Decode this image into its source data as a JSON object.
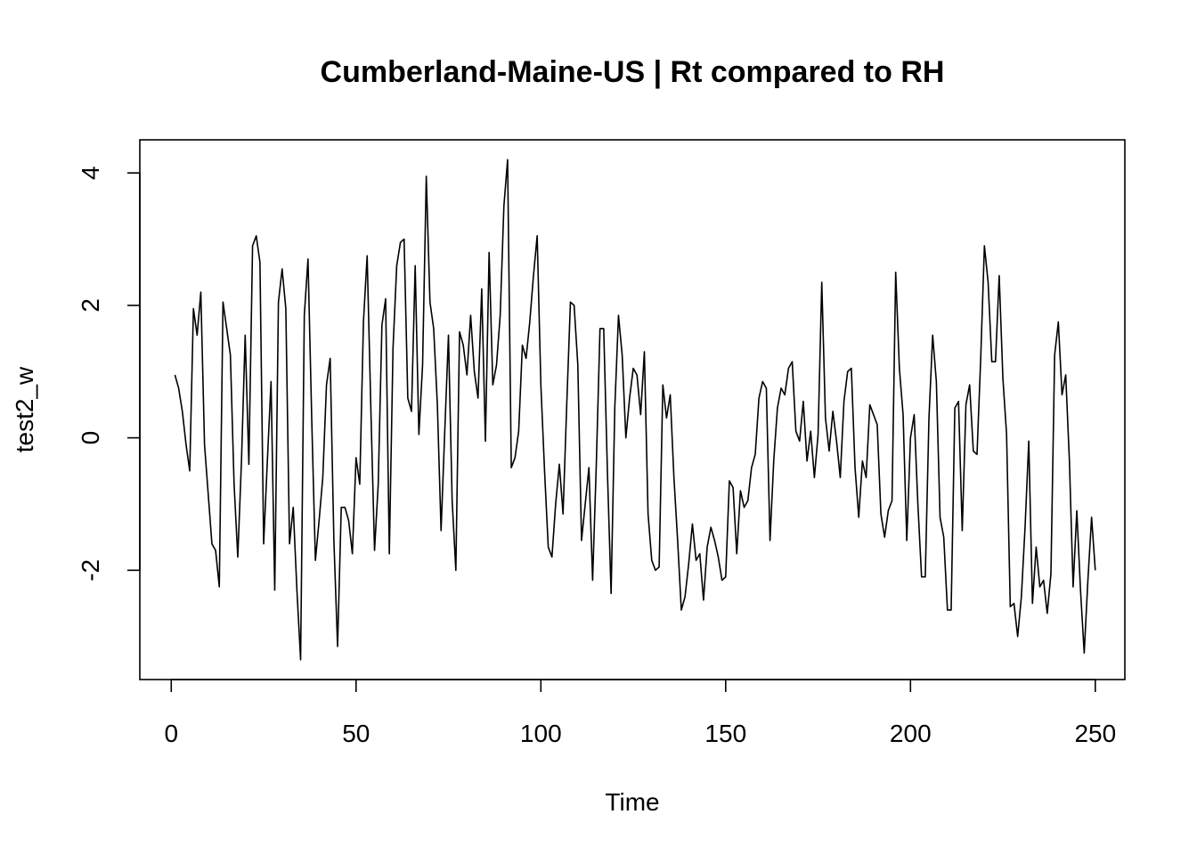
{
  "chart_data": {
    "type": "line",
    "title": "Cumberland-Maine-US | Rt compared to RH",
    "xlabel": "Time",
    "ylabel": "test2_w",
    "xlim": [
      -8.5,
      258
    ],
    "ylim": [
      -3.65,
      4.5
    ],
    "x_ticks": [
      0,
      50,
      100,
      150,
      200,
      250
    ],
    "y_ticks": [
      -2,
      0,
      2,
      4
    ],
    "grid": false,
    "legend": "none",
    "series": [
      {
        "color": "#000000",
        "x_start": 1,
        "values": [
          0.95,
          0.75,
          0.4,
          -0.1,
          -0.5,
          1.95,
          1.55,
          2.2,
          -0.1,
          -0.85,
          -1.6,
          -1.7,
          -2.25,
          2.05,
          1.65,
          1.25,
          -0.7,
          -1.8,
          -0.35,
          1.55,
          -0.4,
          2.9,
          3.05,
          2.65,
          -1.6,
          -0.35,
          0.85,
          -2.3,
          2.05,
          2.55,
          1.95,
          -1.6,
          -1.05,
          -2.3,
          -3.35,
          1.85,
          2.7,
          0.3,
          -1.85,
          -1.25,
          -0.6,
          0.8,
          1.2,
          -1.55,
          -3.15,
          -1.05,
          -1.05,
          -1.25,
          -1.75,
          -0.3,
          -0.7,
          1.75,
          2.75,
          0.45,
          -1.7,
          -0.7,
          1.7,
          2.1,
          -1.75,
          1.35,
          2.6,
          2.95,
          3.0,
          0.6,
          0.4,
          2.6,
          0.05,
          1.1,
          3.95,
          2.05,
          1.65,
          0.5,
          -1.4,
          0.1,
          1.55,
          -0.95,
          -2.0,
          1.6,
          1.4,
          0.95,
          1.85,
          1.0,
          0.6,
          2.25,
          -0.05,
          2.8,
          0.8,
          1.1,
          1.85,
          3.5,
          4.2,
          -0.45,
          -0.3,
          0.1,
          1.4,
          1.2,
          1.75,
          2.45,
          3.05,
          0.8,
          -0.5,
          -1.65,
          -1.8,
          -1.0,
          -0.4,
          -1.15,
          0.5,
          2.05,
          2.0,
          1.1,
          -1.55,
          -1.0,
          -0.45,
          -2.15,
          -0.4,
          1.65,
          1.65,
          -0.5,
          -2.35,
          0.45,
          1.85,
          1.25,
          0.0,
          0.6,
          1.05,
          0.95,
          0.35,
          1.3,
          -1.15,
          -1.85,
          -2.0,
          -1.95,
          0.8,
          0.3,
          0.65,
          -0.6,
          -1.55,
          -2.6,
          -2.4,
          -1.9,
          -1.3,
          -1.85,
          -1.75,
          -2.45,
          -1.65,
          -1.35,
          -1.55,
          -1.8,
          -2.15,
          -2.1,
          -0.65,
          -0.75,
          -1.75,
          -0.8,
          -1.05,
          -0.95,
          -0.45,
          -0.25,
          0.6,
          0.85,
          0.75,
          -1.55,
          -0.35,
          0.45,
          0.75,
          0.65,
          1.05,
          1.15,
          0.1,
          -0.05,
          0.55,
          -0.35,
          0.1,
          -0.6,
          0.05,
          2.35,
          0.3,
          -0.2,
          0.4,
          -0.05,
          -0.6,
          0.55,
          1.0,
          1.05,
          -0.45,
          -1.2,
          -0.35,
          -0.6,
          0.5,
          0.35,
          0.2,
          -1.15,
          -1.5,
          -1.1,
          -0.95,
          2.5,
          1.05,
          0.35,
          -1.55,
          0.0,
          0.35,
          -1.0,
          -2.1,
          -2.1,
          0.3,
          1.55,
          0.85,
          -1.2,
          -1.5,
          -2.6,
          -2.6,
          0.45,
          0.55,
          -1.4,
          0.5,
          0.8,
          -0.2,
          -0.25,
          1.2,
          2.9,
          2.35,
          1.15,
          1.15,
          2.45,
          0.9,
          0.05,
          -2.55,
          -2.5,
          -3.0,
          -2.4,
          -1.35,
          -0.05,
          -2.5,
          -1.65,
          -2.25,
          -2.15,
          -2.65,
          -2.05,
          1.25,
          1.75,
          0.65,
          0.95,
          -0.35,
          -2.25,
          -1.1,
          -2.3,
          -3.25,
          -2.15,
          -1.2,
          -2.0
        ]
      }
    ]
  }
}
